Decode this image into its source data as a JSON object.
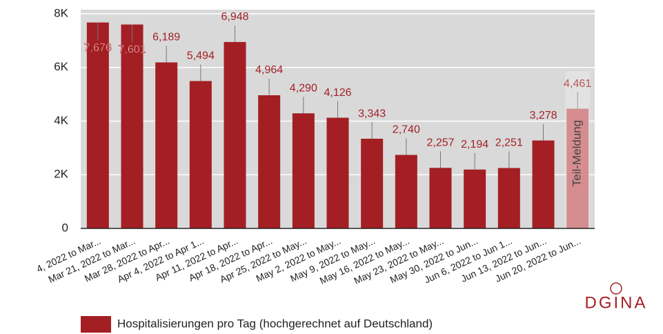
{
  "chart_data": {
    "type": "bar",
    "categories": [
      "4, 2022 to Mar...",
      "Mar 21, 2022 to Mar...",
      "Mar 28, 2022 to Apr...",
      "Apr 4, 2022 to Apr 1...",
      "Apr 11, 2022 to Apr...",
      "Apr 18, 2022 to Apr...",
      "Apr 25, 2022 to May...",
      "May 2, 2022 to May...",
      "May 9, 2022 to May...",
      "May 16, 2022 to May...",
      "May 23, 2022 to May...",
      "May 30, 2022 to Jun...",
      "Jun 6, 2022 to Jun 1...",
      "Jun 13, 2022 to Jun...",
      "Jun 20, 2022 to Jun..."
    ],
    "series": [
      {
        "name": "Hospitalisierungen pro Tag (hochgerechnet auf Deutschland)",
        "color": "#a31f24",
        "colors": [
          "#a31f24",
          "#a31f24",
          "#a31f24",
          "#a31f24",
          "#a31f24",
          "#a31f24",
          "#a31f24",
          "#a31f24",
          "#a31f24",
          "#a31f24",
          "#a31f24",
          "#a31f24",
          "#a31f24",
          "#a31f24",
          "#c8676b"
        ],
        "values": [
          7676,
          7601,
          6189,
          5494,
          6948,
          4964,
          4290,
          4126,
          3343,
          2740,
          2257,
          2194,
          2251,
          3278,
          4461
        ],
        "value_labels": [
          "7,676",
          "7,601",
          "6,189",
          "5,494",
          "6,948",
          "4,964",
          "4,290",
          "4,126",
          "3,343",
          "2,740",
          "2,257",
          "2,194",
          "2,251",
          "3,278",
          "4,461"
        ]
      }
    ],
    "ylim": [
      0,
      8000
    ],
    "yticks": [
      0,
      {
        "value": 2000,
        "label": "2K"
      },
      {
        "value": 4000,
        "label": "4K"
      },
      {
        "value": 6000,
        "label": "6K"
      },
      {
        "value": 8000,
        "label": "8K"
      }
    ],
    "grid": true,
    "annotation": "Teil-Meldung",
    "logo": "DGINA"
  }
}
